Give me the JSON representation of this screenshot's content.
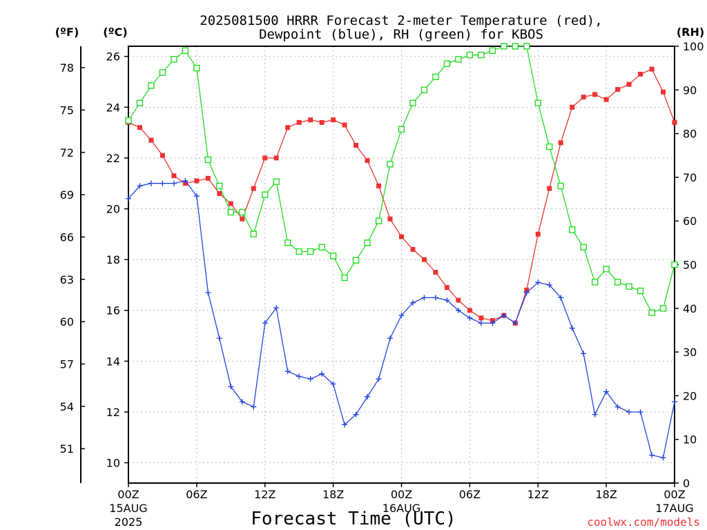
{
  "chart_data": {
    "type": "line",
    "title_line1": "2025081500 HRRR Forecast 2-meter Temperature (red),",
    "title_line2": "Dewpoint (blue), RH (green) for KBOS",
    "xlabel": "Forecast Time (UTC)",
    "credit": "coolwx.com/models",
    "left_units_f": "(ºF)",
    "left_units_c": "(ºC)",
    "right_units": "(RH)",
    "x_range_hours": [
      0,
      48
    ],
    "c_range": [
      9.2,
      26.4
    ],
    "rh_range": [
      0,
      100
    ],
    "x_ticks": [
      {
        "hour": 0,
        "line1": "00Z",
        "line2": "15AUG",
        "line3": "2025"
      },
      {
        "hour": 6,
        "line1": "06Z",
        "line2": "",
        "line3": ""
      },
      {
        "hour": 12,
        "line1": "12Z",
        "line2": "",
        "line3": ""
      },
      {
        "hour": 18,
        "line1": "18Z",
        "line2": "",
        "line3": ""
      },
      {
        "hour": 24,
        "line1": "00Z",
        "line2": "16AUG",
        "line3": ""
      },
      {
        "hour": 30,
        "line1": "06Z",
        "line2": "",
        "line3": ""
      },
      {
        "hour": 36,
        "line1": "12Z",
        "line2": "",
        "line3": ""
      },
      {
        "hour": 42,
        "line1": "18Z",
        "line2": "",
        "line3": ""
      },
      {
        "hour": 48,
        "line1": "00Z",
        "line2": "17AUG",
        "line3": ""
      }
    ],
    "c_ticks": [
      10,
      12,
      14,
      16,
      18,
      20,
      22,
      24,
      26
    ],
    "f_ticks": [
      51,
      54,
      57,
      60,
      63,
      66,
      69,
      72,
      75,
      78
    ],
    "rh_ticks": [
      0,
      10,
      20,
      30,
      40,
      50,
      60,
      70,
      80,
      90,
      100
    ],
    "grid": true,
    "series": [
      {
        "name": "Temperature",
        "unit": "C",
        "color": "#ee3333",
        "marker": "filled-square",
        "values": [
          23.4,
          23.2,
          22.7,
          22.1,
          21.3,
          21.0,
          21.1,
          21.2,
          20.6,
          20.2,
          19.6,
          20.8,
          22.0,
          22.0,
          23.2,
          23.4,
          23.5,
          23.4,
          23.5,
          23.3,
          22.5,
          21.9,
          20.9,
          19.6,
          18.9,
          18.4,
          18.0,
          17.5,
          16.9,
          16.4,
          16.0,
          15.7,
          15.6,
          15.8,
          15.5,
          16.8,
          19.0,
          20.8,
          22.6,
          24.0,
          24.4,
          24.5,
          24.3,
          24.7,
          24.9,
          25.3,
          25.5,
          24.6,
          23.4
        ]
      },
      {
        "name": "Dewpoint",
        "unit": "C",
        "color": "#2244dd",
        "marker": "plus",
        "values": [
          20.4,
          20.9,
          21.0,
          21.0,
          21.0,
          21.1,
          20.5,
          16.7,
          14.9,
          13.0,
          12.4,
          12.2,
          15.5,
          16.1,
          13.6,
          13.4,
          13.3,
          13.5,
          13.1,
          11.5,
          11.9,
          12.6,
          13.3,
          14.9,
          15.8,
          16.3,
          16.5,
          16.5,
          16.4,
          16.0,
          15.7,
          15.5,
          15.5,
          15.8,
          15.5,
          16.7,
          17.1,
          17.0,
          16.5,
          15.3,
          14.3,
          11.9,
          12.8,
          12.2,
          12.0,
          12.0,
          10.3,
          10.2,
          12.4
        ]
      },
      {
        "name": "RH",
        "unit": "%",
        "color": "#22dd22",
        "marker": "open-square",
        "values": [
          83,
          87,
          91,
          94,
          97,
          99,
          95,
          74,
          68,
          62,
          62,
          57,
          66,
          69,
          55,
          53,
          53,
          54,
          52,
          47,
          51,
          55,
          60,
          73,
          81,
          87,
          90,
          93,
          96,
          97,
          98,
          98,
          99,
          100,
          100,
          100,
          87,
          77,
          68,
          58,
          54,
          46,
          49,
          46,
          45,
          44,
          39,
          40,
          50
        ]
      }
    ]
  }
}
